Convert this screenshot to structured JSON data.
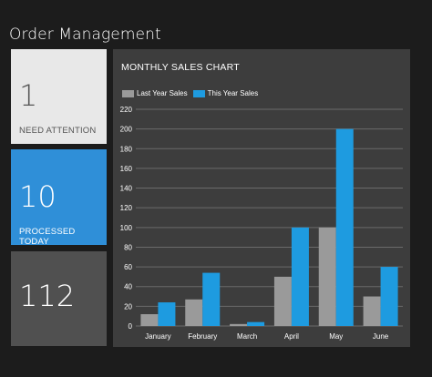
{
  "header": {
    "title": "Order Management"
  },
  "tiles": {
    "attention": {
      "value": "1",
      "label": "NEED ATTENTION"
    },
    "processed": {
      "value": "10",
      "label": "PROCESSED TODAY"
    },
    "total": {
      "value": "112"
    }
  },
  "colors": {
    "last_year": "#9a9a9a",
    "this_year": "#1e9be0",
    "gridline": "#6a6a6a"
  },
  "chart_data": {
    "type": "bar",
    "title": "MONTHLY SALES CHART",
    "categories": [
      "January",
      "February",
      "March",
      "April",
      "May",
      "June"
    ],
    "series": [
      {
        "name": "Last Year Sales",
        "values": [
          12,
          27,
          2,
          50,
          100,
          30
        ]
      },
      {
        "name": "This Year Sales",
        "values": [
          24,
          54,
          4,
          100,
          200,
          60
        ]
      }
    ],
    "yticks": [
      "0",
      "20",
      "40",
      "60",
      "80",
      "100",
      "120",
      "140",
      "160",
      "180",
      "200",
      "220"
    ],
    "ylim": [
      0,
      220
    ],
    "grid": true,
    "legend_position": "top-left"
  }
}
